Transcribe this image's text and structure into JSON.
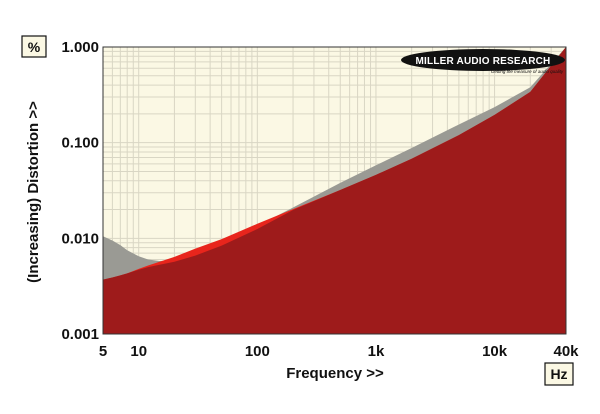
{
  "chart_data": {
    "type": "area",
    "x_scale": "log",
    "y_scale": "log",
    "xlim": [
      5,
      40000
    ],
    "ylim": [
      0.001,
      1.0
    ],
    "grid": true,
    "x_ticks": [
      {
        "value": 5,
        "label": "5"
      },
      {
        "value": 10,
        "label": "10"
      },
      {
        "value": 100,
        "label": "100"
      },
      {
        "value": 1000,
        "label": "1k"
      },
      {
        "value": 10000,
        "label": "10k"
      },
      {
        "value": 40000,
        "label": "40k"
      }
    ],
    "y_ticks": [
      {
        "value": 0.001,
        "label": "0.001"
      },
      {
        "value": 0.01,
        "label": "0.010"
      },
      {
        "value": 0.1,
        "label": "0.100"
      },
      {
        "value": 1.0,
        "label": "1.000"
      }
    ],
    "xlabel": "Frequency >>",
    "ylabel": "(Increasing) Distortion >>",
    "x_unit": "Hz",
    "y_unit": "%",
    "series": [
      {
        "color": "#9a9a94",
        "x": [
          5,
          6,
          7,
          8,
          10,
          12,
          15,
          20,
          30,
          50,
          100,
          200,
          500,
          1000,
          2000,
          5000,
          10000,
          20000,
          40000
        ],
        "y": [
          0.0105,
          0.0095,
          0.0085,
          0.0075,
          0.0065,
          0.006,
          0.0058,
          0.0059,
          0.0068,
          0.0088,
          0.0135,
          0.021,
          0.038,
          0.058,
          0.088,
          0.155,
          0.235,
          0.38,
          1.0
        ]
      },
      {
        "color": "#e8251c",
        "x": [
          5,
          6,
          7,
          8,
          10,
          12,
          15,
          20,
          30,
          50,
          100,
          200,
          500,
          1000,
          2000,
          5000,
          10000,
          20000,
          40000
        ],
        "y": [
          0.0037,
          0.0039,
          0.0041,
          0.0043,
          0.0048,
          0.0052,
          0.0057,
          0.0064,
          0.0078,
          0.0098,
          0.0142,
          0.0202,
          0.032,
          0.046,
          0.068,
          0.12,
          0.195,
          0.34,
          1.0
        ]
      },
      {
        "color": "#9e1b1b",
        "x": [
          5,
          6,
          7,
          8,
          10,
          12,
          15,
          20,
          30,
          50,
          100,
          200,
          500,
          1000,
          2000,
          5000,
          10000,
          20000,
          40000
        ],
        "y": [
          0.0037,
          0.0039,
          0.0041,
          0.0043,
          0.0047,
          0.005,
          0.0053,
          0.0057,
          0.0066,
          0.0084,
          0.0125,
          0.0198,
          0.032,
          0.046,
          0.068,
          0.12,
          0.195,
          0.34,
          1.0
        ]
      }
    ]
  },
  "branding": {
    "logo_text": "MILLER AUDIO RESEARCH",
    "tagline": "Getting the measure of audio quality"
  },
  "colors": {
    "plot_background": "#fbf8e4",
    "grid_line": "#d9d6c4",
    "unit_box": "#fbf8e4"
  }
}
